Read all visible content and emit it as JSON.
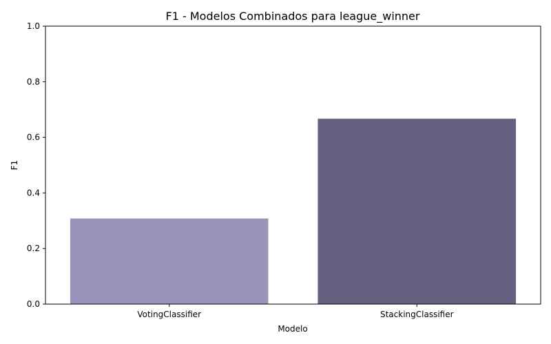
{
  "chart_data": {
    "type": "bar",
    "title": "F1 - Modelos Combinados para league_winner",
    "xlabel": "Modelo",
    "ylabel": "F1",
    "categories": [
      "VotingClassifier",
      "StackingClassifier"
    ],
    "values": [
      0.308,
      0.667
    ],
    "colors": [
      "#9994ba",
      "#655f80"
    ],
    "ylim": [
      0,
      1
    ],
    "yticks": [
      0.0,
      0.2,
      0.4,
      0.6,
      0.8,
      1.0
    ],
    "ytick_labels": [
      "0.0",
      "0.2",
      "0.4",
      "0.6",
      "0.8",
      "1.0"
    ],
    "grid": false,
    "legend": "none"
  }
}
